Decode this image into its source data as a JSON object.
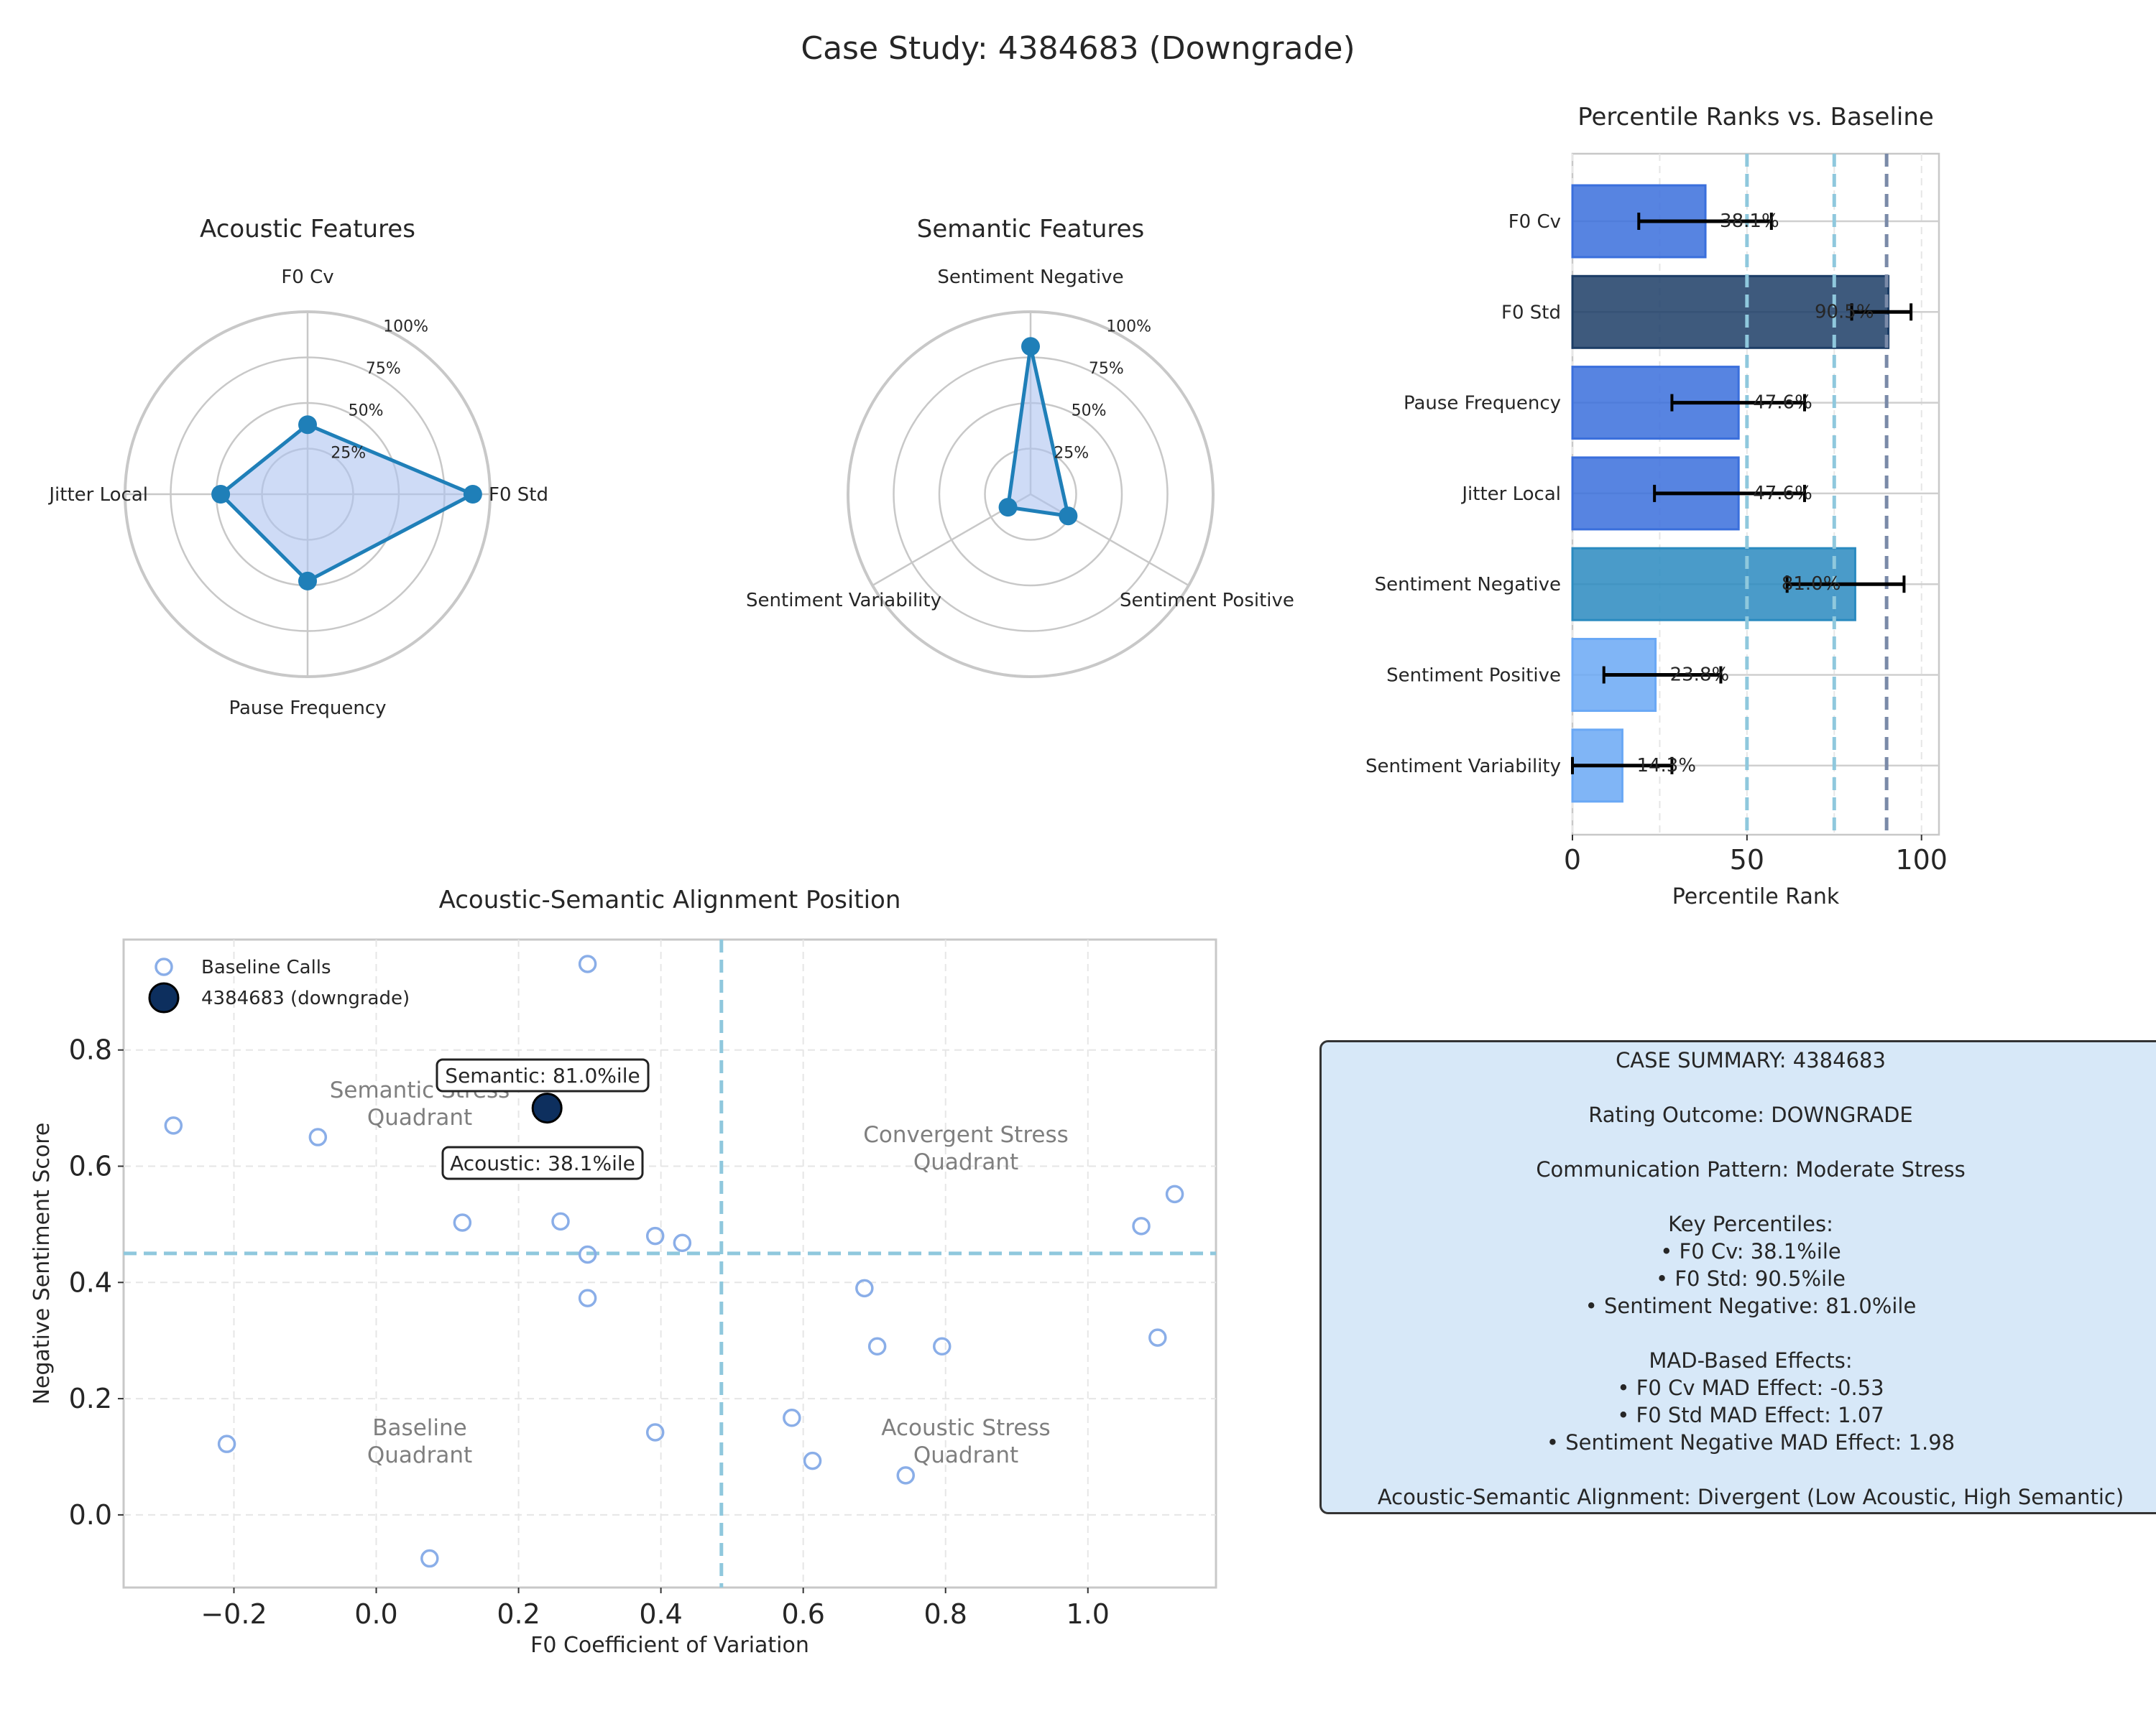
{
  "title": "Case Study: 4384683 (Downgrade)",
  "colors": {
    "radar_line": "#1f7fb8",
    "radar_fill": "#aec3f0",
    "bar_default": "#3a6fdc",
    "bar_high": "#1c3d66",
    "bar_sentiment": "#2a8ac0",
    "bar_light": "#6aa8f5",
    "ref_line": "#8fc8dd",
    "case_point": "#0d2f5e",
    "baseline_point": "#8aaee8",
    "summary_bg": "#d7e8f8"
  },
  "chart_data": [
    {
      "type": "radar",
      "title": "Acoustic Features",
      "axes": [
        "F0 Cv",
        "F0 Std",
        "Pause Frequency",
        "Jitter Local"
      ],
      "values": [
        38.1,
        90.5,
        47.6,
        47.6
      ],
      "rlim": [
        0,
        100
      ],
      "ring_labels": [
        "25%",
        "50%",
        "75%",
        "100%"
      ]
    },
    {
      "type": "radar",
      "title": "Semantic Features",
      "axes": [
        "Sentiment Negative",
        "Sentiment Positive",
        "Sentiment Variability"
      ],
      "values": [
        81.0,
        23.8,
        14.3
      ],
      "rlim": [
        0,
        100
      ],
      "ring_labels": [
        "25%",
        "50%",
        "75%",
        "100%"
      ]
    },
    {
      "type": "bar",
      "orientation": "horizontal",
      "title": "Percentile Ranks vs. Baseline",
      "xlabel": "Percentile Rank",
      "xlim": [
        0,
        105
      ],
      "xticks": [
        0,
        50,
        100
      ],
      "categories": [
        "F0 Cv",
        "F0 Std",
        "Pause Frequency",
        "Jitter Local",
        "Sentiment Negative",
        "Sentiment Positive",
        "Sentiment Variability"
      ],
      "values": [
        38.1,
        90.5,
        47.6,
        47.6,
        81.0,
        23.8,
        14.3
      ],
      "labels": [
        "38.1%",
        "90.5%",
        "47.6%",
        "47.6%",
        "81.0%",
        "23.8%",
        "14.3%"
      ],
      "error_low": [
        19,
        80,
        28.5,
        23.5,
        61.5,
        9,
        0
      ],
      "error_high": [
        57,
        97,
        66.5,
        66.5,
        95,
        42.5,
        28.5
      ],
      "bar_colors": [
        "default",
        "high",
        "default",
        "default",
        "sentiment",
        "light",
        "light"
      ],
      "reference_lines": [
        50,
        75,
        90
      ]
    },
    {
      "type": "scatter",
      "title": "Acoustic-Semantic Alignment Position",
      "xlabel": "F0 Coefficient of Variation",
      "ylabel": "Negative Sentiment Score",
      "xlim": [
        -0.355,
        1.18
      ],
      "ylim": [
        -0.125,
        0.99
      ],
      "xticks": [
        -0.2,
        0.0,
        0.2,
        0.4,
        0.6,
        0.8,
        1.0
      ],
      "xtick_labels": [
        "−0.2",
        "0.0",
        "0.2",
        "0.4",
        "0.6",
        "0.8",
        "1.0"
      ],
      "yticks": [
        0.0,
        0.2,
        0.4,
        0.6,
        0.8
      ],
      "ytick_labels": [
        "0.0",
        "0.2",
        "0.4",
        "0.6",
        "0.8"
      ],
      "grid": true,
      "legend_placement": "top-left",
      "threshold_x": 0.485,
      "threshold_y": 0.45,
      "baseline": {
        "name": "Baseline Calls",
        "x": [
          0.297,
          -0.285,
          -0.082,
          0.121,
          0.259,
          0.297,
          0.297,
          0.392,
          0.43,
          0.392,
          -0.21,
          0.075,
          0.584,
          0.613,
          0.686,
          0.704,
          0.744,
          0.795,
          1.075,
          1.122,
          1.098
        ],
        "y": [
          0.948,
          0.67,
          0.65,
          0.503,
          0.505,
          0.448,
          0.373,
          0.48,
          0.468,
          0.142,
          0.122,
          -0.075,
          0.167,
          0.093,
          0.39,
          0.29,
          0.068,
          0.29,
          0.497,
          0.552,
          0.305
        ]
      },
      "case": {
        "name": "4384683 (downgrade)",
        "x": 0.24,
        "y": 0.7
      },
      "annotations": [
        "Semantic: 81.0%ile",
        "Acoustic: 38.1%ile"
      ],
      "quadrant_labels": {
        "top_left": [
          "Semantic Stress",
          "Quadrant"
        ],
        "top_right": [
          "Convergent Stress",
          "Quadrant"
        ],
        "bottom_left": [
          "Baseline",
          "Quadrant"
        ],
        "bottom_right": [
          "Acoustic Stress",
          "Quadrant"
        ]
      }
    }
  ],
  "summary": {
    "title": "CASE SUMMARY: 4384683",
    "outcome": "Rating Outcome: DOWNGRADE",
    "pattern": "Communication Pattern: Moderate Stress",
    "percentiles_header": "Key Percentiles:",
    "percentiles": [
      "• F0 Cv: 38.1%ile",
      "• F0 Std: 90.5%ile",
      "• Sentiment Negative: 81.0%ile"
    ],
    "effects_header": "MAD-Based Effects:",
    "effects": [
      "• F0 Cv MAD Effect: -0.53",
      "• F0 Std MAD Effect: 1.07",
      "• Sentiment Negative MAD Effect: 1.98"
    ],
    "alignment": "Acoustic-Semantic Alignment: Divergent (Low Acoustic, High Semantic)"
  }
}
